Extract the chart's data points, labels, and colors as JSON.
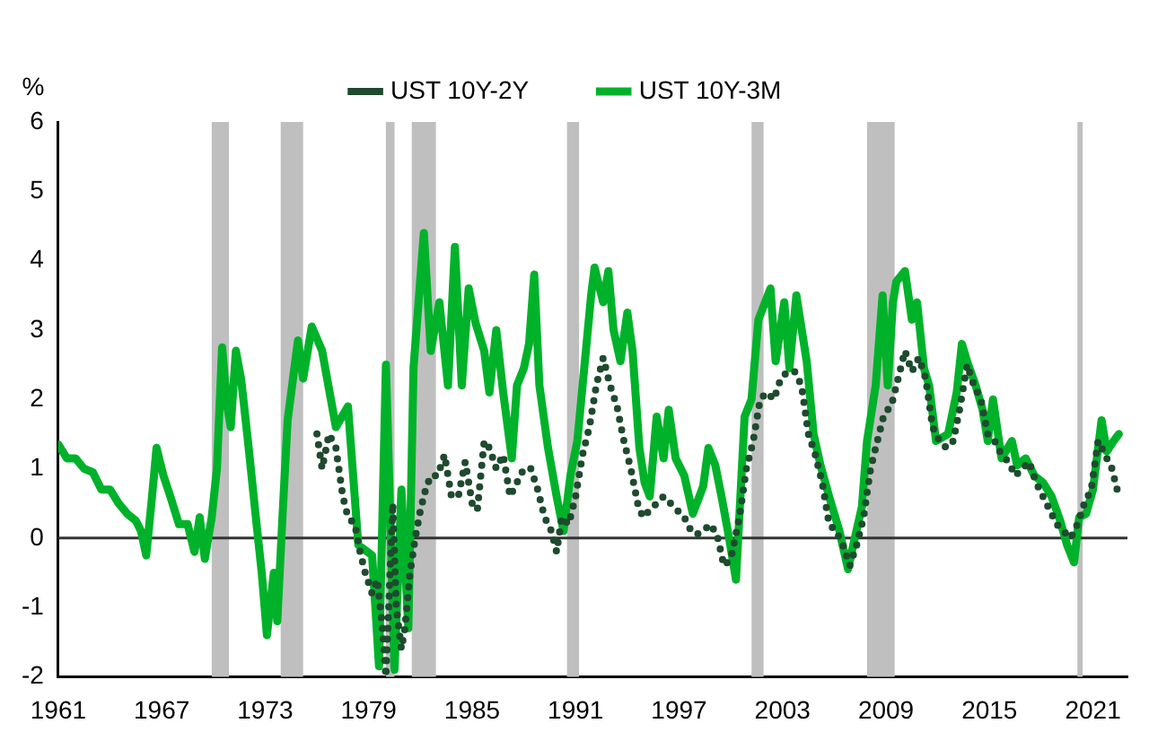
{
  "chart_data": {
    "type": "line",
    "ylabel": "%",
    "xlim": [
      1961,
      2023
    ],
    "xticks": [
      1961,
      1967,
      1973,
      1979,
      1985,
      1991,
      1997,
      2003,
      2009,
      2015,
      2021
    ],
    "ylim": [
      -2,
      6
    ],
    "yticks": [
      -2,
      -1,
      0,
      1,
      2,
      3,
      4,
      5,
      6
    ],
    "grid": false,
    "legend": "top",
    "marker": "none",
    "series": [
      {
        "name": "UST 10Y-2Y",
        "color": "#1e4a2e",
        "line_style": "dotted",
        "x": [
          1976.0,
          1976.3,
          1976.7,
          1977.1,
          1977.5,
          1977.8,
          1978.2,
          1978.5,
          1978.8,
          1979.2,
          1979.5,
          1979.8,
          1980.0,
          1980.4,
          1980.6,
          1980.9,
          1981.1,
          1981.4,
          1981.7,
          1982.0,
          1982.3,
          1982.6,
          1983.0,
          1983.4,
          1983.8,
          1984.2,
          1984.6,
          1985.0,
          1985.3,
          1985.7,
          1986.0,
          1986.4,
          1986.8,
          1987.2,
          1987.6,
          1988.0,
          1988.4,
          1988.8,
          1989.2,
          1989.6,
          1989.9,
          1990.2,
          1990.6,
          1991.0,
          1991.4,
          1991.8,
          1992.2,
          1992.6,
          1993.0,
          1993.4,
          1993.8,
          1994.2,
          1994.6,
          1994.9,
          1995.3,
          1995.7,
          1996.1,
          1996.5,
          1996.9,
          1997.3,
          1997.7,
          1998.0,
          1998.4,
          1998.8,
          1999.2,
          1999.6,
          2000.0,
          2000.5,
          2000.9,
          2001.3,
          2001.7,
          2002.1,
          2002.5,
          2002.9,
          2003.3,
          2003.7,
          2004.1,
          2004.5,
          2004.9,
          2005.3,
          2005.7,
          2006.1,
          2006.5,
          2006.9,
          2007.3,
          2007.7,
          2008.1,
          2008.5,
          2008.9,
          2009.3,
          2009.7,
          2010.1,
          2010.5,
          2010.9,
          2011.3,
          2011.7,
          2012.1,
          2012.5,
          2012.9,
          2013.3,
          2013.7,
          2014.1,
          2014.5,
          2014.9,
          2015.3,
          2015.7,
          2016.1,
          2016.5,
          2016.9,
          2017.3,
          2017.7,
          2018.1,
          2018.5,
          2018.9,
          2019.3,
          2019.7,
          2020.1,
          2020.5,
          2020.9,
          2021.3,
          2021.7,
          2022.1,
          2022.5
        ],
        "values": [
          1.5,
          1.0,
          1.5,
          1.3,
          0.6,
          0.3,
          0.2,
          -0.2,
          -0.5,
          -0.8,
          -0.6,
          -1.3,
          -2.0,
          0.5,
          -1.0,
          -1.6,
          -1.3,
          -0.5,
          0.0,
          0.4,
          0.7,
          0.9,
          0.9,
          1.2,
          0.6,
          0.6,
          1.1,
          0.5,
          0.4,
          1.4,
          1.3,
          1.0,
          1.2,
          0.6,
          0.8,
          1.0,
          1.0,
          0.7,
          0.3,
          0.1,
          -0.2,
          0.3,
          0.2,
          0.6,
          1.2,
          1.6,
          2.2,
          2.6,
          2.2,
          1.9,
          1.4,
          1.0,
          0.5,
          0.3,
          0.4,
          0.5,
          0.6,
          0.5,
          0.4,
          0.3,
          0.1,
          0.05,
          0.1,
          0.2,
          0.05,
          -0.4,
          -0.3,
          0.3,
          1.0,
          1.4,
          2.0,
          2.1,
          2.0,
          2.3,
          2.4,
          2.4,
          2.2,
          1.5,
          1.2,
          0.8,
          0.2,
          0.1,
          -0.1,
          -0.4,
          -0.1,
          0.3,
          1.0,
          1.4,
          1.8,
          1.9,
          2.3,
          2.7,
          2.4,
          2.6,
          2.3,
          1.6,
          1.4,
          1.3,
          1.4,
          1.9,
          2.5,
          2.2,
          2.0,
          1.5,
          1.4,
          1.2,
          1.1,
          0.9,
          1.0,
          1.1,
          0.8,
          0.6,
          0.4,
          0.2,
          0.1,
          0.0,
          0.2,
          0.5,
          0.7,
          1.4,
          1.2,
          1.0,
          0.6
        ]
      },
      {
        "name": "UST 10Y-3M",
        "color": "#00b22a",
        "line_style": "solid",
        "x": [
          1961.0,
          1961.5,
          1962.0,
          1962.5,
          1963.0,
          1963.5,
          1964.0,
          1964.5,
          1965.0,
          1965.5,
          1965.8,
          1966.1,
          1966.4,
          1966.7,
          1967.1,
          1967.5,
          1968.0,
          1968.5,
          1968.9,
          1969.2,
          1969.5,
          1969.9,
          1970.2,
          1970.5,
          1970.8,
          1971.0,
          1971.3,
          1971.6,
          1972.0,
          1972.5,
          1972.8,
          1973.1,
          1973.5,
          1973.7,
          1974.0,
          1974.3,
          1974.9,
          1975.2,
          1975.7,
          1976.3,
          1977.1,
          1977.8,
          1978.4,
          1979.2,
          1979.6,
          1980.0,
          1980.5,
          1980.9,
          1981.3,
          1981.6,
          1982.2,
          1982.6,
          1983.1,
          1983.6,
          1984.0,
          1984.4,
          1984.8,
          1985.2,
          1985.7,
          1986.0,
          1986.4,
          1986.8,
          1987.3,
          1987.6,
          1988.0,
          1988.3,
          1988.6,
          1988.9,
          1989.4,
          1989.9,
          1990.3,
          1990.7,
          1991.1,
          1991.5,
          1991.9,
          1992.1,
          1992.6,
          1992.9,
          1993.2,
          1993.6,
          1994.0,
          1994.3,
          1994.7,
          1995.0,
          1995.3,
          1995.7,
          1996.1,
          1996.4,
          1996.8,
          1997.3,
          1997.8,
          1998.4,
          1998.7,
          1999.1,
          1999.5,
          1999.9,
          2000.3,
          2000.8,
          2001.2,
          2001.6,
          2002.3,
          2002.6,
          2003.1,
          2003.4,
          2003.8,
          2004.4,
          2004.8,
          2005.2,
          2005.7,
          2006.3,
          2006.8,
          2007.1,
          2007.6,
          2007.9,
          2008.4,
          2008.8,
          2009.1,
          2009.4,
          2009.6,
          2010.1,
          2010.5,
          2010.8,
          2011.2,
          2011.5,
          2011.9,
          2012.6,
          2013.1,
          2013.4,
          2013.7,
          2014.2,
          2014.6,
          2014.9,
          2015.2,
          2015.7,
          2016.3,
          2016.6,
          2017.1,
          2017.6,
          2018.1,
          2018.6,
          2019.1,
          2019.5,
          2019.9,
          2020.2,
          2020.6,
          2021.0,
          2021.5,
          2021.8,
          2022.2,
          2022.5
        ],
        "values": [
          1.35,
          1.15,
          1.15,
          1.0,
          0.95,
          0.7,
          0.7,
          0.5,
          0.35,
          0.25,
          0.1,
          -0.25,
          0.5,
          1.3,
          0.9,
          0.6,
          0.2,
          0.2,
          -0.2,
          0.3,
          -0.3,
          0.3,
          1.0,
          2.75,
          1.9,
          1.6,
          2.7,
          2.3,
          1.4,
          0.2,
          -0.5,
          -1.4,
          -0.5,
          -1.2,
          0.3,
          1.7,
          2.85,
          2.3,
          3.05,
          2.7,
          1.6,
          1.9,
          -0.1,
          -0.25,
          -1.85,
          2.5,
          -1.9,
          0.7,
          -1.3,
          2.45,
          4.4,
          2.7,
          3.4,
          2.2,
          4.2,
          2.2,
          3.6,
          3.1,
          2.7,
          2.1,
          3.0,
          2.1,
          1.15,
          2.2,
          2.45,
          2.8,
          3.8,
          2.2,
          1.3,
          0.6,
          0.1,
          0.9,
          1.4,
          2.45,
          3.5,
          3.9,
          3.4,
          3.85,
          3.0,
          2.55,
          3.25,
          2.7,
          1.3,
          0.8,
          0.6,
          1.75,
          1.15,
          1.85,
          1.15,
          0.9,
          0.35,
          0.75,
          1.3,
          1.05,
          0.55,
          0.0,
          -0.6,
          1.75,
          2.0,
          3.15,
          3.6,
          2.55,
          3.4,
          2.45,
          3.5,
          2.55,
          1.5,
          1.05,
          0.6,
          0.1,
          -0.45,
          -0.1,
          0.45,
          1.4,
          2.2,
          3.5,
          2.2,
          3.4,
          3.7,
          3.85,
          3.15,
          3.4,
          2.45,
          2.2,
          1.4,
          1.5,
          2.1,
          2.8,
          2.55,
          2.2,
          1.85,
          1.4,
          2.0,
          1.15,
          1.4,
          1.05,
          1.15,
          0.9,
          0.8,
          0.6,
          0.25,
          -0.1,
          -0.35,
          0.3,
          0.35,
          0.7,
          1.7,
          1.25,
          1.4,
          1.5
        ]
      }
    ],
    "ref_lines": [
      {
        "axis": "y",
        "value": 0,
        "color": "#333333"
      }
    ],
    "bands": [
      {
        "axis": "x",
        "from": 1969.9,
        "to": 1970.9,
        "color": "#bfbfbf"
      },
      {
        "axis": "x",
        "from": 1973.9,
        "to": 1975.2,
        "color": "#bfbfbf"
      },
      {
        "axis": "x",
        "from": 1980.0,
        "to": 1980.5,
        "color": "#bfbfbf"
      },
      {
        "axis": "x",
        "from": 1981.5,
        "to": 1982.9,
        "color": "#bfbfbf"
      },
      {
        "axis": "x",
        "from": 1990.5,
        "to": 1991.2,
        "color": "#bfbfbf"
      },
      {
        "axis": "x",
        "from": 2001.2,
        "to": 2001.9,
        "color": "#bfbfbf"
      },
      {
        "axis": "x",
        "from": 2007.9,
        "to": 2009.5,
        "color": "#bfbfbf"
      },
      {
        "axis": "x",
        "from": 2020.1,
        "to": 2020.4,
        "color": "#bfbfbf"
      }
    ]
  }
}
